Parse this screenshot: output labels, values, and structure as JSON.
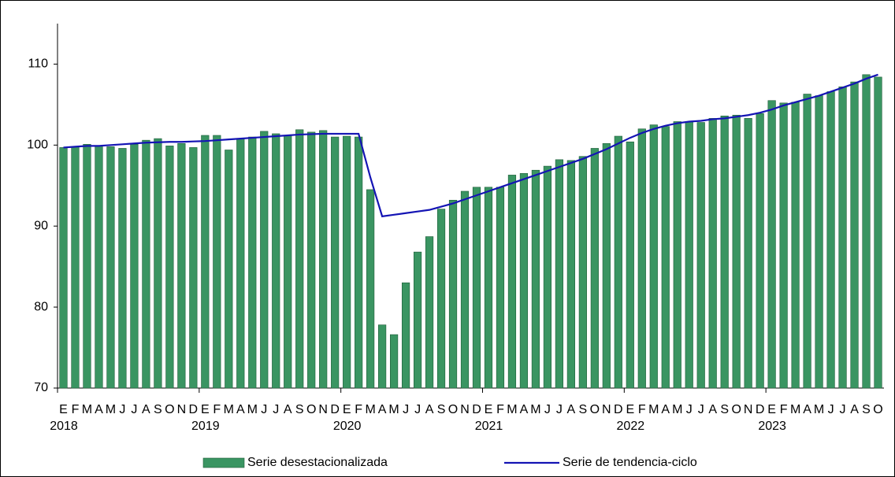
{
  "chart_data": {
    "type": "bar",
    "categories": [
      "E",
      "F",
      "M",
      "A",
      "M",
      "J",
      "J",
      "A",
      "S",
      "O",
      "N",
      "D",
      "E",
      "F",
      "M",
      "A",
      "M",
      "J",
      "J",
      "A",
      "S",
      "O",
      "N",
      "D",
      "E",
      "F",
      "M",
      "A",
      "M",
      "J",
      "J",
      "A",
      "S",
      "O",
      "N",
      "D",
      "E",
      "F",
      "M",
      "A",
      "M",
      "J",
      "J",
      "A",
      "S",
      "O",
      "N",
      "D",
      "E",
      "F",
      "M",
      "A",
      "M",
      "J",
      "J",
      "A",
      "S",
      "O",
      "N",
      "D",
      "E",
      "F",
      "M",
      "A",
      "M",
      "J",
      "J",
      "A",
      "S",
      "O"
    ],
    "years": [
      "2018",
      "2019",
      "2020",
      "2021",
      "2022",
      "2023"
    ],
    "series": [
      {
        "name": "Serie desestacionalizada",
        "type": "bar",
        "color": "#3a9562",
        "values": [
          99.7,
          99.8,
          100.1,
          99.9,
          99.8,
          99.6,
          100.1,
          100.6,
          100.8,
          99.9,
          100.2,
          99.7,
          101.2,
          101.2,
          99.4,
          100.8,
          101.0,
          101.7,
          101.4,
          101.2,
          101.9,
          101.6,
          101.8,
          101.0,
          101.1,
          101.0,
          94.5,
          77.8,
          76.6,
          83.0,
          86.8,
          88.7,
          92.1,
          93.2,
          94.3,
          94.8,
          94.8,
          94.8,
          96.3,
          96.5,
          96.9,
          97.4,
          98.2,
          98.1,
          98.6,
          99.6,
          100.2,
          101.1,
          100.4,
          102.0,
          102.5,
          102.3,
          102.9,
          102.9,
          102.8,
          103.3,
          103.6,
          103.7,
          103.3,
          103.9,
          105.5,
          105.2,
          105.3,
          106.3,
          106.1,
          106.6,
          107.2,
          107.8,
          108.7,
          108.4
        ]
      },
      {
        "name": "Serie de tendencia-ciclo",
        "type": "line",
        "color": "#1414b4",
        "values": [
          99.7,
          99.8,
          99.9,
          99.9,
          100.0,
          100.1,
          100.2,
          100.3,
          100.35,
          100.4,
          100.4,
          100.45,
          100.5,
          100.6,
          100.7,
          100.8,
          100.9,
          101.0,
          101.1,
          101.2,
          101.3,
          101.35,
          101.4,
          101.4,
          101.4,
          101.4,
          96.0,
          91.2,
          91.4,
          91.6,
          91.8,
          92.0,
          92.4,
          92.8,
          93.3,
          93.8,
          94.3,
          94.8,
          95.3,
          95.8,
          96.3,
          96.8,
          97.3,
          97.8,
          98.3,
          98.9,
          99.5,
          100.2,
          100.9,
          101.5,
          102.0,
          102.4,
          102.7,
          102.9,
          103.0,
          103.2,
          103.3,
          103.5,
          103.7,
          104.0,
          104.4,
          104.9,
          105.3,
          105.7,
          106.1,
          106.6,
          107.1,
          107.6,
          108.2,
          108.7
        ]
      }
    ],
    "ylim": [
      70,
      115
    ],
    "yticks": [
      70,
      80,
      90,
      100,
      110
    ],
    "grid": false
  }
}
